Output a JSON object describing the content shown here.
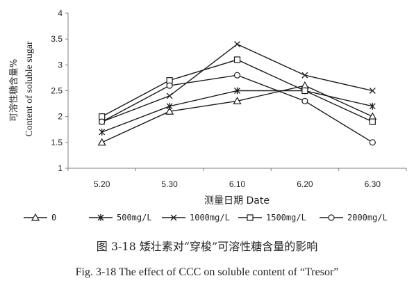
{
  "chart_data": {
    "type": "line",
    "categories": [
      "5.20",
      "5.30",
      "6.10",
      "6.20",
      "6.30"
    ],
    "ylim": [
      1,
      4
    ],
    "yticks": [
      1,
      1.5,
      2,
      2.5,
      3,
      3.5,
      4
    ],
    "ylabel_cn": "可溶性糖含量%",
    "ylabel_en": "Content of soluble sugar",
    "xlabel": "测量日期 Date",
    "grid": false,
    "legend_position": "bottom",
    "series": [
      {
        "name": "0",
        "marker": "triangle",
        "values": [
          1.5,
          2.1,
          2.3,
          2.6,
          2.0
        ]
      },
      {
        "name": "500mg/L",
        "marker": "asterisk",
        "values": [
          1.7,
          2.2,
          2.5,
          2.5,
          2.2
        ]
      },
      {
        "name": "1000mg/L",
        "marker": "x",
        "values": [
          1.9,
          2.4,
          3.4,
          2.8,
          2.5
        ]
      },
      {
        "name": "1500mg/L",
        "marker": "square",
        "values": [
          2.0,
          2.7,
          3.1,
          2.5,
          1.9
        ]
      },
      {
        "name": "2000mg/L",
        "marker": "circle",
        "values": [
          1.9,
          2.6,
          2.8,
          2.3,
          1.5
        ]
      }
    ]
  },
  "caption": {
    "cn": "图 3-18  矮壮素对“穿梭”可溶性糖含量的影响",
    "en": "Fig. 3-18 The effect of CCC on soluble content of  “Tresor”"
  },
  "colors": {
    "line": "#1a1a1a",
    "axis": "#7f7f7f"
  }
}
